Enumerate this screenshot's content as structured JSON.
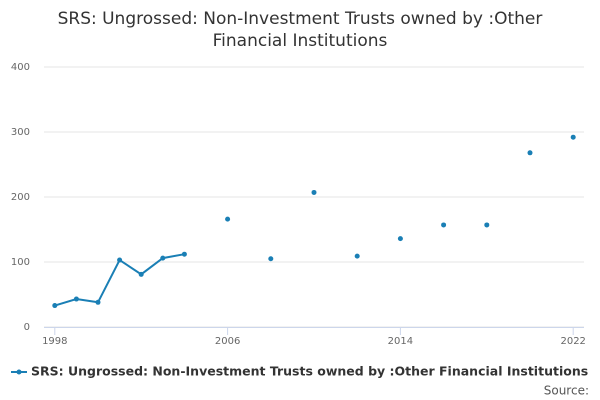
{
  "chart_data": {
    "type": "line",
    "title": "SRS: Ungrossed: Non-Investment Trusts owned by :Other Financial Institutions",
    "x": [
      1998,
      1999,
      2000,
      2001,
      2002,
      2003,
      2004,
      2005,
      2006,
      2007,
      2008,
      2009,
      2010,
      2011,
      2012,
      2013,
      2014,
      2015,
      2016,
      2017,
      2018,
      2019,
      2020,
      2021,
      2022
    ],
    "series": [
      {
        "name": "SRS: Ungrossed: Non-Investment Trusts owned by :Other Financial Institutions",
        "color": "#1a7fb5",
        "values": [
          33,
          43,
          38,
          103,
          81,
          106,
          112,
          null,
          166,
          null,
          105,
          null,
          207,
          null,
          109,
          null,
          136,
          null,
          157,
          null,
          157,
          null,
          268,
          null,
          292
        ]
      }
    ],
    "xlim": [
      1997.5,
      2022.5
    ],
    "xticks": [
      1998,
      2006,
      2014,
      2022
    ],
    "ylim": [
      0,
      400
    ],
    "yticks": [
      0,
      100,
      200,
      300,
      400
    ],
    "grid": true,
    "legend": "bottom",
    "source_label": "Source:"
  }
}
